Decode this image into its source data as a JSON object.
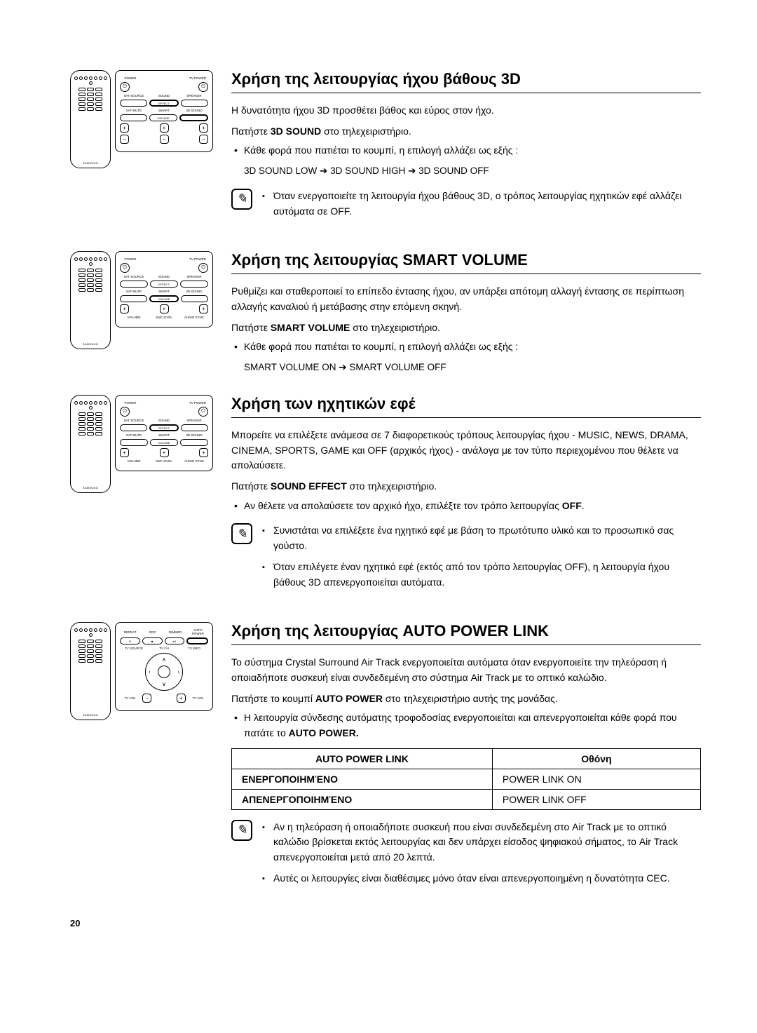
{
  "page_number": "20",
  "remote_brand": "SAMSUNG",
  "remote_labels": {
    "power": "POWER",
    "tvpower": "TV POWER",
    "satsource": "SAT\nSOURCE",
    "sound": "SOUND",
    "speaker": "SPEAKER",
    "effect": "EFFECT",
    "satmute": "SAT MUTE",
    "smart": "SMART",
    "3dsound": "3D SOUND",
    "volume": "VOLUME",
    "swlevel": "S/W LEVEL",
    "audiosync": "AUDIO SYNC",
    "repeat": "REPEAT",
    "drc": "DRC",
    "dimmer": "DIMMER",
    "autopower": "AUTO POWER",
    "tvsource": "TV SOURCE",
    "tvch": "TV CH",
    "tvinfo": "TV INFO",
    "tvvol": "TV VOL"
  },
  "sections": [
    {
      "heading": "Χρήση της λειτουργίας ήχου βάθους 3D",
      "intro": "Η δυνατότητα ήχου 3D προσθέτει βάθος και εύρος στον ήχο.",
      "instruction_pre": "Πατήστε ",
      "instruction_bold": "3D SOUND",
      "instruction_post": " στο τηλεχειριστήριο.",
      "bullet": "Κάθε φορά που πατιέται το κουμπί, η επιλογή αλλάζει ως εξής :",
      "sequence": "3D SOUND LOW ➔ 3D SOUND HIGH ➔ 3D SOUND OFF",
      "notes": [
        "Όταν ενεργοποιείτε τη λειτουργία ήχου βάθους 3D, ο τρόπος λειτουργίας ηχητικών εφέ αλλάζει αυτόματα σε OFF."
      ]
    },
    {
      "heading": "Χρήση της λειτουργίας SMART VOLUME",
      "intro": "Ρυθμίζει και σταθεροποιεί το επίπεδο έντασης ήχου, αν υπάρξει απότομη αλλαγή έντασης σε περίπτωση αλλαγής καναλιού ή μετάβασης στην επόμενη σκηνή.",
      "instruction_pre": "Πατήστε ",
      "instruction_bold": "SMART VOLUME",
      "instruction_post": " στο τηλεχειριστήριο.",
      "bullet": "Κάθε φορά που πατιέται το κουμπί, η επιλογή αλλάζει ως εξής :",
      "sequence": "SMART VOLUME ON ➔ SMART VOLUME OFF"
    },
    {
      "heading": "Χρήση των ηχητικών εφέ",
      "intro": "Μπορείτε να επιλέξετε ανάμεσα σε 7 διαφορετικούς τρόπους λειτουργίας ήχου - MUSIC, NEWS, DRAMA, CINEMA, SPORTS, GAME και OFF (αρχικός ήχος) - ανάλογα με τον τύπο περιεχομένου που θέλετε να απολαύσετε.",
      "instruction_pre": "Πατήστε ",
      "instruction_bold": "SOUND EFFECT",
      "instruction_post": " στο τηλεχειριστήριο.",
      "bullet_html": "Αν θέλετε να απολαύσετε τον αρχικό ήχο, επιλέξτε τον τρόπο λειτουργίας OFF.",
      "notes": [
        "Συνιστάται να επιλέξετε ένα ηχητικό εφέ με βάση το πρωτότυπο υλικό και το προσωπικό σας γούστο.",
        "Όταν επιλέγετε έναν ηχητικό εφέ (εκτός από τον τρόπο λειτουργίας OFF), η λειτουργία ήχου βάθους 3D απενεργοποιείται αυτόματα."
      ]
    },
    {
      "heading": "Χρήση της λειτουργίας AUTO POWER LINK",
      "intro": "Το σύστημα Crystal Surround Air Track ενεργοποιείται αυτόματα όταν ενεργοποιείτε την τηλεόραση ή οποιαδήποτε συσκευή είναι συνδεδεμένη στο σύστημα Air Track με το οπτικό καλώδιο.",
      "instruction_pre": "Πατήστε το κουμπί ",
      "instruction_bold": "AUTO POWER",
      "instruction_post": " στο τηλεχειριστήριο αυτής της μονάδας.",
      "bullet_html": "Η λειτουργία σύνδεσης αυτόματης τροφοδοσίας ενεργοποιείται και απενεργοποιείται κάθε φορά που πατάτε το AUTO POWER.",
      "table": {
        "head": [
          "AUTO POWER LINK",
          "Οθόνη"
        ],
        "rows": [
          [
            "ΕΝΕΡΓΟΠΟΙΗΜΈΝΟ",
            "POWER LINK ON"
          ],
          [
            "ΑΠΕΝΕΡΓΟΠΟΙΗΜΈΝΟ",
            "POWER LINK OFF"
          ]
        ]
      },
      "notes": [
        "Αν η τηλεόραση ή οποιαδήποτε συσκευή που είναι συνδεδεμένη στο Air Track με το οπτικό καλώδιο βρίσκεται εκτός λειτουργίας και δεν υπάρχει είσοδος ψηφιακού σήματος, το Air Track απενεργοποιείται μετά από 20 λεπτά.",
        "Αυτές οι λειτουργίες είναι διαθέσιμες μόνο όταν είναι απενεργοποιημένη η δυνατότητα CEC."
      ]
    }
  ]
}
